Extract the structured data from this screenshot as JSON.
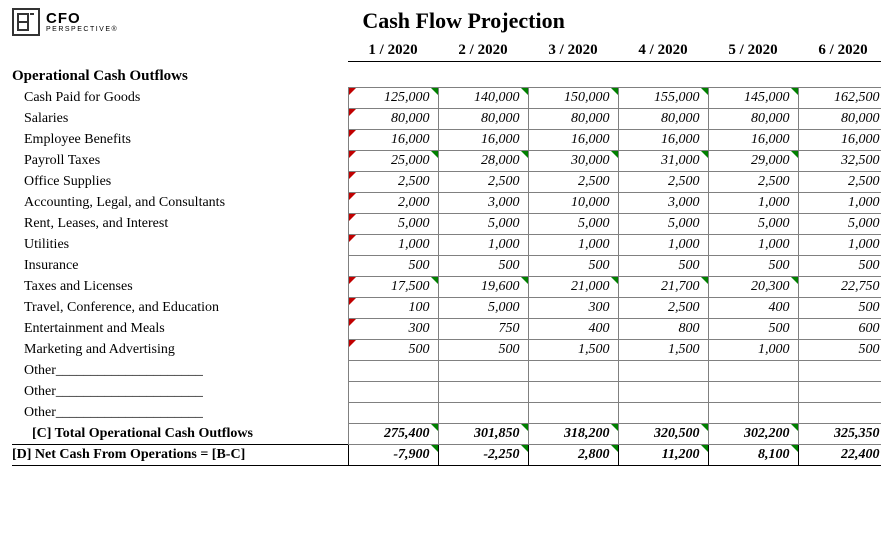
{
  "logo": {
    "cfo": "CFO",
    "sub": "PERSPECTIVE®"
  },
  "title": "Cash Flow Projection",
  "periods": [
    "1 / 2020",
    "2 / 2020",
    "3 / 2020",
    "4 / 2020",
    "5 / 2020",
    "6 / 2020"
  ],
  "section_label": "Operational Cash Outflows",
  "rows": [
    {
      "label": "Cash Paid for Goods",
      "values": [
        "125,000",
        "140,000",
        "150,000",
        "155,000",
        "145,000",
        "162,500"
      ],
      "red": true,
      "grn": true
    },
    {
      "label": "Salaries",
      "values": [
        "80,000",
        "80,000",
        "80,000",
        "80,000",
        "80,000",
        "80,000"
      ],
      "red": true,
      "grn": false
    },
    {
      "label": "Employee Benefits",
      "values": [
        "16,000",
        "16,000",
        "16,000",
        "16,000",
        "16,000",
        "16,000"
      ],
      "red": true,
      "grn": false
    },
    {
      "label": "Payroll Taxes",
      "values": [
        "25,000",
        "28,000",
        "30,000",
        "31,000",
        "29,000",
        "32,500"
      ],
      "red": true,
      "grn": true
    },
    {
      "label": "Office Supplies",
      "values": [
        "2,500",
        "2,500",
        "2,500",
        "2,500",
        "2,500",
        "2,500"
      ],
      "red": true,
      "grn": false
    },
    {
      "label": "Accounting, Legal, and Consultants",
      "values": [
        "2,000",
        "3,000",
        "10,000",
        "3,000",
        "1,000",
        "1,000"
      ],
      "red": true,
      "grn": false
    },
    {
      "label": "Rent, Leases, and Interest",
      "values": [
        "5,000",
        "5,000",
        "5,000",
        "5,000",
        "5,000",
        "5,000"
      ],
      "red": true,
      "grn": false
    },
    {
      "label": "Utilities",
      "values": [
        "1,000",
        "1,000",
        "1,000",
        "1,000",
        "1,000",
        "1,000"
      ],
      "red": true,
      "grn": false
    },
    {
      "label": "Insurance",
      "values": [
        "500",
        "500",
        "500",
        "500",
        "500",
        "500"
      ],
      "red": false,
      "grn": false
    },
    {
      "label": "Taxes and Licenses",
      "values": [
        "17,500",
        "19,600",
        "21,000",
        "21,700",
        "20,300",
        "22,750"
      ],
      "red": true,
      "grn": true
    },
    {
      "label": "Travel, Conference, and Education",
      "values": [
        "100",
        "5,000",
        "300",
        "2,500",
        "400",
        "500"
      ],
      "red": true,
      "grn": false
    },
    {
      "label": "Entertainment and Meals",
      "values": [
        "300",
        "750",
        "400",
        "800",
        "500",
        "600"
      ],
      "red": true,
      "grn": false
    },
    {
      "label": "Marketing and Advertising",
      "values": [
        "500",
        "500",
        "1,500",
        "1,500",
        "1,000",
        "500"
      ],
      "red": true,
      "grn": false
    },
    {
      "label": "Other_____________________",
      "values": [
        "",
        "",
        "",
        "",
        "",
        ""
      ],
      "red": false,
      "grn": false
    },
    {
      "label": "Other_____________________",
      "values": [
        "",
        "",
        "",
        "",
        "",
        ""
      ],
      "red": false,
      "grn": false
    },
    {
      "label": "Other_____________________",
      "values": [
        "",
        "",
        "",
        "",
        "",
        ""
      ],
      "red": false,
      "grn": false
    }
  ],
  "total": {
    "label": "[C] Total Operational Cash Outflows",
    "values": [
      "275,400",
      "301,850",
      "318,200",
      "320,500",
      "302,200",
      "325,350"
    ],
    "grn": true
  },
  "net": {
    "label": "[D] Net Cash From Operations = [B-C]",
    "values": [
      "-7,900",
      "-2,250",
      "2,800",
      "11,200",
      "8,100",
      "22,400"
    ],
    "grn": true
  },
  "colors": {
    "border": "#808080",
    "underline": "#000000",
    "red_flag": "#c00000",
    "grn_flag": "#008000",
    "background": "#ffffff"
  }
}
